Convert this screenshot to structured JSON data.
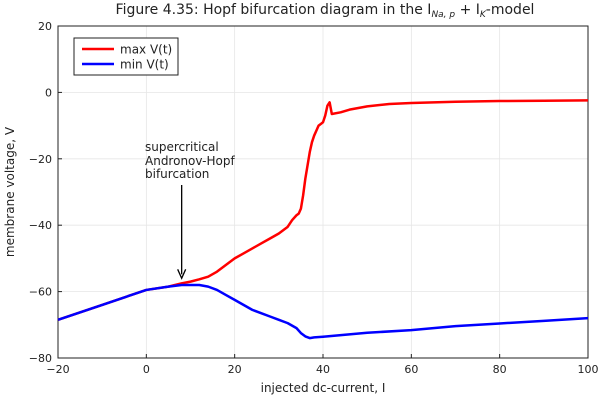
{
  "chart_data": {
    "type": "line",
    "title": "Figure 4.35: Hopf bifurcation diagram in the I",
    "title_sub1": "Na, p",
    "title_mid": " + I",
    "title_sub2": "K",
    "title_tail": "-model",
    "xlabel": "injected dc-current, I",
    "ylabel": "membrane voltage, V",
    "xlim": [
      -20,
      100
    ],
    "ylim": [
      -80,
      20
    ],
    "xticks": [
      -20,
      0,
      20,
      40,
      60,
      80,
      100
    ],
    "yticks": [
      -80,
      -60,
      -40,
      -20,
      0,
      20
    ],
    "xtick_labels": [
      "−20",
      "0",
      "20",
      "40",
      "60",
      "80",
      "100"
    ],
    "ytick_labels": [
      "−80",
      "−60",
      "−40",
      "−20",
      "0",
      "20"
    ],
    "grid": true,
    "legend_position": "top-left",
    "series": [
      {
        "name": "max V(t)",
        "color": "#ff0000",
        "x": [
          -20,
          -10,
          0,
          5,
          8,
          10,
          12,
          14,
          16,
          18,
          20,
          22,
          24,
          26,
          28,
          30,
          32,
          33,
          34,
          34.5,
          35,
          35.5,
          36,
          36.5,
          37,
          37.5,
          38,
          38.5,
          39,
          39.5,
          40,
          40.5,
          41,
          41.5,
          42,
          44,
          46,
          50,
          55,
          60,
          70,
          80,
          90,
          100
        ],
        "y": [
          -68.5,
          -64,
          -59.5,
          -58.5,
          -57.5,
          -57,
          -56.3,
          -55.5,
          -54,
          -52,
          -50,
          -48.5,
          -47,
          -45.5,
          -44,
          -42.5,
          -40.5,
          -38.5,
          -37,
          -36.5,
          -35,
          -31,
          -26,
          -22,
          -18,
          -15,
          -13,
          -11.5,
          -10,
          -9.5,
          -9,
          -7,
          -4,
          -3,
          -6.5,
          -6,
          -5.2,
          -4.2,
          -3.5,
          -3.2,
          -2.8,
          -2.6,
          -2.5,
          -2.4
        ]
      },
      {
        "name": "min V(t)",
        "color": "#0000ff",
        "x": [
          -20,
          -10,
          0,
          5,
          8,
          10,
          12,
          14,
          16,
          18,
          20,
          22,
          24,
          26,
          28,
          30,
          32,
          34,
          35,
          36,
          37,
          38,
          40,
          50,
          60,
          70,
          80,
          90,
          100
        ],
        "y": [
          -68.5,
          -64,
          -59.5,
          -58.5,
          -58,
          -58,
          -58,
          -58.5,
          -59.5,
          -61,
          -62.5,
          -64,
          -65.5,
          -66.5,
          -67.5,
          -68.5,
          -69.5,
          -71,
          -72.5,
          -73.5,
          -74,
          -73.8,
          -73.6,
          -72.4,
          -71.6,
          -70.4,
          -69.6,
          -68.8,
          -68
        ]
      }
    ],
    "annotation": {
      "lines": [
        "supercritical",
        "Andronov-Hopf",
        "bifurcation"
      ],
      "x": 8,
      "y": -56
    }
  }
}
